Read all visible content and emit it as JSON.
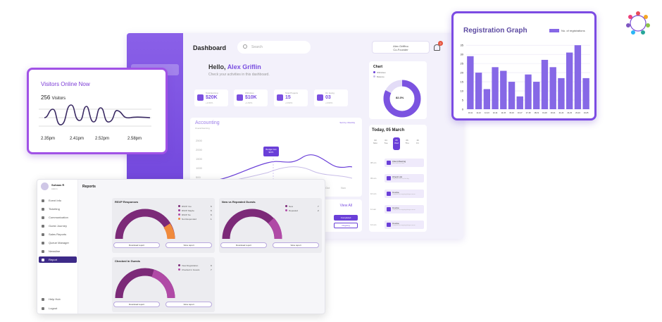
{
  "dashboard": {
    "title": "Dashboard",
    "search_placeholder": "Search",
    "user": {
      "name": "Alex Griffino",
      "role": "Co-Founder",
      "notifications": "2"
    },
    "greeting": "Hello,",
    "greeting_name": "Alex Griflin",
    "greeting_sub": "Check your activities in this dashboard.",
    "stats": [
      {
        "label": "Total Earning",
        "value": "$20K",
        "sub": "+2.82%"
      },
      {
        "label": "Withdraw",
        "value": "$10K",
        "sub": "+1.82%"
      },
      {
        "label": "Total Projects",
        "value": "15",
        "sub": "+0.82%"
      },
      {
        "label": "On Going",
        "value": "03",
        "sub": "+0.82%"
      }
    ],
    "accounting": {
      "title": "Accounting",
      "subtitle": "Overall Earning",
      "sort": "Sort by: Monthly",
      "y_ticks": [
        "2500",
        "2000",
        "1500",
        "1000",
        "500"
      ],
      "x_ticks": [
        "Oct",
        "Nov"
      ],
      "tooltip_label": "Budget Jan",
      "tooltip_value": "$67K"
    },
    "lower": {
      "view_all": "View All",
      "completed": "Completed",
      "ongoing": "Ongoing"
    },
    "chart_card": {
      "title": "Chart",
      "legend": [
        "Withdraw",
        "Balance"
      ],
      "center": "82.3%"
    },
    "today": {
      "title": "Today, 05 March",
      "days": [
        {
          "num": "03",
          "name": "Mon"
        },
        {
          "num": "04",
          "name": "Tue"
        },
        {
          "num": "05",
          "name": "Wed"
        },
        {
          "num": "06",
          "name": "Thu"
        },
        {
          "num": "16",
          "name": "Fri"
        }
      ],
      "slots": [
        "08 am",
        "09 am",
        "10 am",
        "11 am",
        "12 am"
      ],
      "events": [
        {
          "title": "Client Meeting",
          "sub": "Meet with the client"
        },
        {
          "title": "Check List",
          "sub": "Complete tasks for the day"
        },
        {
          "title": "Course",
          "sub": "Complete the ongoing design course"
        },
        {
          "title": "Course",
          "sub": "Complete the ongoing design course"
        },
        {
          "title": "Course",
          "sub": "Complete the ongoing design course"
        }
      ]
    }
  },
  "registration": {
    "title": "Registration Graph",
    "legend": "No. of registrations",
    "accent": "#8668e6",
    "chart_data": {
      "type": "bar",
      "categories": [
        "10-11",
        "11-12",
        "12-13",
        "13-14",
        "14-15",
        "15-16",
        "16-17",
        "17-18",
        "18-19",
        "19-20",
        "20-21",
        "21-22",
        "22-23",
        "23-24",
        "24-25"
      ],
      "values": [
        29,
        20,
        11,
        23,
        21,
        15,
        7,
        19,
        15,
        27,
        23,
        17,
        31,
        35,
        17
      ],
      "y_ticks": [
        0,
        5,
        10,
        15,
        20,
        25,
        30,
        35
      ],
      "ylim": [
        0,
        37
      ]
    }
  },
  "visitors": {
    "title": "Visitors Online Now",
    "count": "256",
    "count_unit": "Visitors",
    "times": [
      "2.35pm",
      "2.41pm",
      "2.52pm",
      "2.58pm"
    ]
  },
  "reports": {
    "user": {
      "name": "Suhaas R",
      "role": "Admin"
    },
    "heading": "Reports",
    "nav": [
      "Event Info",
      "Ticketing",
      "Communication",
      "Guest Journey",
      "Sales Reports",
      "Queue Manager",
      "Newsline",
      "Report"
    ],
    "nav_bottom": [
      "Help Hub",
      "Logout"
    ],
    "cards": [
      {
        "title": "RSVP Responses",
        "legend": [
          {
            "label": "RSVP Yes",
            "value": "6",
            "color": "#7c2a78"
          },
          {
            "label": "RSVP Maybe",
            "value": "6",
            "color": "#9b3596"
          },
          {
            "label": "RSVP No",
            "value": "6",
            "color": "#b04aa6"
          },
          {
            "label": "Not Responded",
            "value": "1",
            "color": "#f08a3c"
          }
        ]
      },
      {
        "title": "New vs Repeated Guests",
        "legend": [
          {
            "label": "New",
            "value": "7",
            "color": "#7c2a78"
          },
          {
            "label": "Repeated",
            "value": "2",
            "color": "#b04aa6"
          }
        ]
      },
      {
        "title": "Checked in Guests",
        "legend": [
          {
            "label": "View Registration",
            "value": "9",
            "color": "#7c2a78"
          },
          {
            "label": "Checked in Guests",
            "value": "7",
            "color": "#b04aa6"
          }
        ]
      }
    ],
    "download_label": "Download report",
    "view_label": "View report"
  }
}
